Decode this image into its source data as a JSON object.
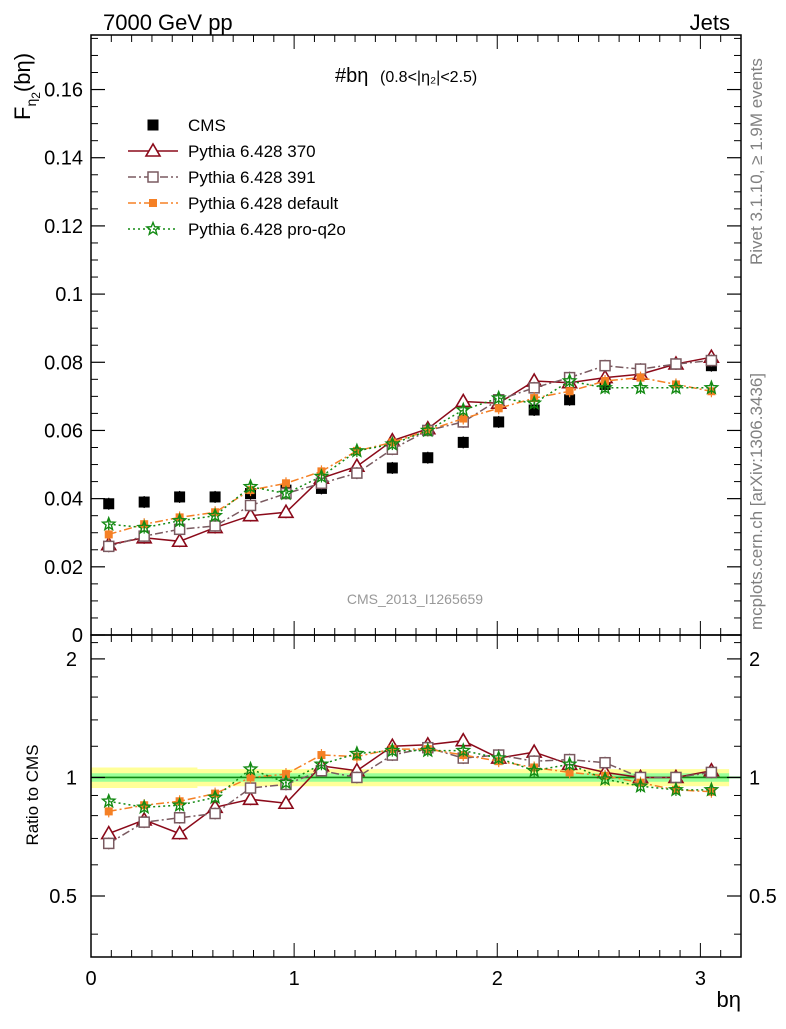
{
  "header": {
    "left": "7000 GeV pp",
    "right": "Jets"
  },
  "side_labels": {
    "rivet": "Rivet 3.1.10, ≥ 1.9M events",
    "mcplots": "mcplots.cern.ch [arXiv:1306.3436]"
  },
  "plot_title_main": "#bη",
  "plot_title_cut": "(0.8<|η₂|<2.5)",
  "watermark": "CMS_2013_I1265659",
  "colors": {
    "cms": "#000000",
    "p370": "#8b0a1a",
    "p391": "#7a5a60",
    "default": "#f58025",
    "proq2o": "#138a13",
    "band_outer": "#ffff99",
    "band_inner": "#99ff99",
    "ratio_line": "#138a13"
  },
  "chart_data": [
    {
      "type": "scatter",
      "panel": "main",
      "ylabel": "Fη₂(bη)",
      "ylim": [
        0,
        0.176
      ],
      "xlim": [
        0,
        3.2
      ],
      "y_ticks": [
        0,
        0.02,
        0.04,
        0.06,
        0.08,
        0.1,
        0.12,
        0.14,
        0.16
      ],
      "y_tick_labels": [
        "0",
        "0.02",
        "0.04",
        "0.06",
        "0.08",
        "0.1",
        "0.12",
        "0.14",
        "0.16"
      ],
      "x": [
        0.0873,
        0.2618,
        0.4363,
        0.6109,
        0.7854,
        0.9599,
        1.1345,
        1.309,
        1.4835,
        1.6581,
        1.8326,
        2.0071,
        2.1817,
        2.3562,
        2.5307,
        2.7053,
        2.8798,
        3.0543
      ],
      "legend_position": "top-left",
      "series": [
        {
          "name": "CMS",
          "key": "cms",
          "marker": "square-filled",
          "line": "none",
          "values": [
            0.0385,
            0.039,
            0.0405,
            0.0405,
            0.0415,
            0.0425,
            0.043,
            0.0475,
            0.049,
            0.052,
            0.0565,
            0.0625,
            0.066,
            0.069,
            0.0735,
            0.0765,
            0.0795,
            0.079
          ]
        },
        {
          "name": "Pythia 6.428 370",
          "key": "p370",
          "marker": "triangle-open",
          "line": "solid",
          "values": [
            0.0265,
            0.0285,
            0.0275,
            0.0315,
            0.035,
            0.036,
            0.046,
            0.0495,
            0.057,
            0.0605,
            0.0685,
            0.068,
            0.0745,
            0.074,
            0.0755,
            0.0765,
            0.0795,
            0.0815
          ]
        },
        {
          "name": "Pythia 6.428 391",
          "key": "p391",
          "marker": "square-open",
          "line": "dashdot",
          "values": [
            0.026,
            0.029,
            0.031,
            0.032,
            0.038,
            0.0415,
            0.0445,
            0.0475,
            0.0545,
            0.06,
            0.0625,
            0.069,
            0.0725,
            0.0755,
            0.079,
            0.078,
            0.0795,
            0.0805
          ]
        },
        {
          "name": "Pythia 6.428 default",
          "key": "default",
          "marker": "square-small-filled",
          "line": "dashdot",
          "values": [
            0.0295,
            0.0325,
            0.0345,
            0.036,
            0.0425,
            0.0445,
            0.048,
            0.054,
            0.0565,
            0.06,
            0.0635,
            0.0665,
            0.0695,
            0.0715,
            0.0745,
            0.0755,
            0.0735,
            0.0715
          ]
        },
        {
          "name": "Pythia 6.428 pro-q2o",
          "key": "proq2o",
          "marker": "star-open",
          "line": "dotted",
          "values": [
            0.0325,
            0.0315,
            0.0335,
            0.035,
            0.0435,
            0.0415,
            0.0465,
            0.054,
            0.056,
            0.06,
            0.066,
            0.0695,
            0.068,
            0.0745,
            0.0725,
            0.0725,
            0.0725,
            0.0725
          ]
        }
      ]
    },
    {
      "type": "scatter",
      "panel": "ratio",
      "ylabel": "Ratio to CMS",
      "xlabel": "bη",
      "ylim": [
        0.35,
        2.3
      ],
      "xlim": [
        0,
        3.2
      ],
      "y_ticks": [
        0.5,
        1,
        2
      ],
      "y_tick_labels": [
        "0.5",
        "1",
        "2"
      ],
      "x_ticks": [
        0,
        1,
        2,
        3
      ],
      "x_tick_labels": [
        "0",
        "1",
        "2",
        "3"
      ],
      "reference_line": 1,
      "band_outer_halfwidth": [
        0.06,
        0.06,
        0.06,
        0.05,
        0.05,
        0.05,
        0.05,
        0.05,
        0.05,
        0.05,
        0.05,
        0.05,
        0.05,
        0.05,
        0.05,
        0.05,
        0.05,
        0.05
      ],
      "band_inner_halfwidth": [
        0.025,
        0.025,
        0.025,
        0.025,
        0.025,
        0.025,
        0.025,
        0.025,
        0.025,
        0.025,
        0.025,
        0.025,
        0.025,
        0.025,
        0.025,
        0.025,
        0.025,
        0.025
      ],
      "x": [
        0.0873,
        0.2618,
        0.4363,
        0.6109,
        0.7854,
        0.9599,
        1.1345,
        1.309,
        1.4835,
        1.6581,
        1.8326,
        2.0071,
        2.1817,
        2.3562,
        2.5307,
        2.7053,
        2.8798,
        3.0543
      ],
      "series": [
        {
          "name": "Pythia 6.428 370",
          "key": "p370",
          "marker": "triangle-open",
          "line": "solid",
          "values": [
            0.72,
            0.78,
            0.72,
            0.84,
            0.88,
            0.86,
            1.07,
            1.04,
            1.2,
            1.21,
            1.24,
            1.12,
            1.16,
            1.08,
            1.03,
            1.0,
            1.0,
            1.04
          ]
        },
        {
          "name": "Pythia 6.428 391",
          "key": "p391",
          "marker": "square-open",
          "line": "dashdot",
          "values": [
            0.68,
            0.77,
            0.79,
            0.81,
            0.94,
            0.96,
            1.04,
            1.0,
            1.14,
            1.19,
            1.12,
            1.14,
            1.1,
            1.11,
            1.09,
            1.0,
            1.0,
            1.03
          ]
        },
        {
          "name": "Pythia 6.428 default",
          "key": "default",
          "marker": "square-small-filled",
          "line": "dashdot",
          "values": [
            0.82,
            0.85,
            0.87,
            0.91,
            1.0,
            1.02,
            1.14,
            1.13,
            1.18,
            1.18,
            1.14,
            1.1,
            1.06,
            1.03,
            1.01,
            0.97,
            0.93,
            0.92
          ]
        },
        {
          "name": "Pythia 6.428 pro-q2o",
          "key": "proq2o",
          "marker": "star-open",
          "line": "dotted",
          "values": [
            0.87,
            0.84,
            0.85,
            0.89,
            1.05,
            0.97,
            1.08,
            1.15,
            1.17,
            1.17,
            1.17,
            1.12,
            1.04,
            1.08,
            0.99,
            0.95,
            0.93,
            0.93
          ]
        }
      ]
    }
  ]
}
